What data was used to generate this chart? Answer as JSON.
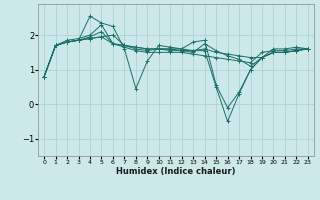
{
  "xlabel": "Humidex (Indice chaleur)",
  "background_color": "#cce8e8",
  "grid_color": "#aacece",
  "line_color": "#1a6e6a",
  "xlim": [
    -0.5,
    23.5
  ],
  "ylim": [
    -1.5,
    2.9
  ],
  "yticks": [
    -1,
    0,
    1,
    2
  ],
  "xticks": [
    0,
    1,
    2,
    3,
    4,
    5,
    6,
    7,
    8,
    9,
    10,
    11,
    12,
    13,
    14,
    15,
    16,
    17,
    18,
    19,
    20,
    21,
    22,
    23
  ],
  "series": [
    [
      0.8,
      1.7,
      1.8,
      1.85,
      2.55,
      2.35,
      2.25,
      1.6,
      0.45,
      1.25,
      1.7,
      1.65,
      1.6,
      1.8,
      1.85,
      0.55,
      -0.1,
      0.35,
      1.0,
      1.35,
      1.6,
      1.6,
      1.65,
      1.6
    ],
    [
      0.8,
      1.7,
      1.85,
      1.9,
      2.0,
      2.3,
      1.75,
      1.65,
      1.55,
      1.5,
      1.5,
      1.5,
      1.5,
      1.45,
      1.4,
      1.35,
      1.3,
      1.25,
      1.2,
      1.5,
      1.55,
      1.55,
      1.6,
      1.6
    ],
    [
      0.8,
      1.7,
      1.8,
      1.85,
      1.95,
      2.1,
      1.75,
      1.7,
      1.6,
      1.55,
      1.6,
      1.55,
      1.55,
      1.5,
      1.75,
      1.55,
      1.4,
      1.3,
      1.1,
      1.35,
      1.5,
      1.5,
      1.55,
      1.6
    ],
    [
      0.8,
      1.7,
      1.8,
      1.85,
      1.9,
      1.95,
      1.75,
      1.7,
      1.65,
      1.6,
      1.6,
      1.6,
      1.55,
      1.55,
      1.6,
      1.5,
      1.45,
      1.4,
      1.35,
      1.35,
      1.5,
      1.5,
      1.55,
      1.6
    ],
    [
      0.8,
      1.7,
      1.8,
      1.85,
      1.9,
      1.95,
      2.0,
      1.7,
      1.65,
      1.6,
      1.6,
      1.6,
      1.6,
      1.55,
      1.55,
      0.5,
      -0.5,
      0.3,
      1.0,
      1.35,
      1.5,
      1.5,
      1.55,
      1.6
    ]
  ]
}
